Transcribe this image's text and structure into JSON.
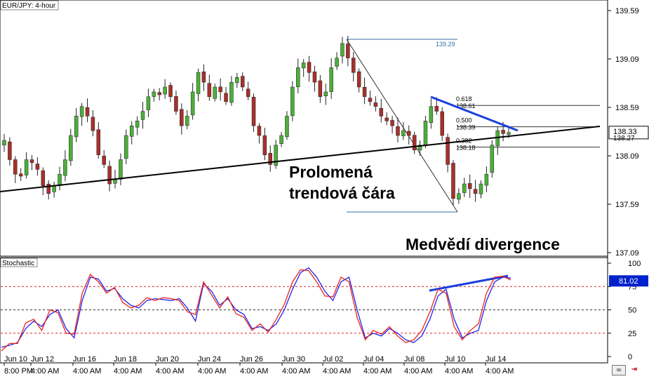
{
  "chart_data": [
    {
      "type": "candlestick",
      "title": "EUR/JPY: 4-hour",
      "yticks": [
        "139.59",
        "139.09",
        "138.59",
        "138.09",
        "137.59",
        "137.09"
      ],
      "ylim": [
        136.95,
        139.75
      ],
      "xticks_top": [
        "Jun 10",
        "Jun 12",
        "Jun 16",
        "Jun 18",
        "Jun 20",
        "Jun 24",
        "Jun 26",
        "Jun 30",
        "Jul 02",
        "Jul 04",
        "Jul 08",
        "Jul 10",
        "Jul 14"
      ],
      "xticks_bottom": [
        "8:00 PM",
        "4:00 AM",
        "4:00 AM",
        "4:00 AM",
        "4:00 AM",
        "4:00 AM",
        "4:00 AM",
        "4:00 AM",
        "4:00 AM",
        "4:00 AM",
        "4:00 AM",
        "4:00 AM",
        "4:00 AM"
      ],
      "current_price": "138.33",
      "price_badge_secondary": "138.27",
      "fib_levels": [
        {
          "ratio": "0.618",
          "price": "138.61"
        },
        {
          "ratio": "0.500",
          "price": "138.39"
        },
        {
          "ratio": "0.382",
          "price": "138.18"
        }
      ],
      "swing_high_label": "139.29",
      "close_path": [
        138.25,
        138.05,
        137.9,
        137.88,
        138.05,
        138.02,
        137.95,
        137.78,
        137.7,
        137.78,
        137.9,
        138.05,
        138.3,
        138.5,
        138.6,
        138.5,
        138.35,
        138.1,
        138.0,
        137.8,
        137.85,
        138.05,
        138.3,
        138.4,
        138.45,
        138.55,
        138.7,
        138.75,
        138.72,
        138.8,
        138.7,
        138.55,
        138.4,
        138.5,
        138.75,
        138.95,
        138.85,
        138.7,
        138.8,
        138.75,
        138.65,
        138.85,
        138.9,
        138.8,
        138.7,
        138.4,
        138.3,
        138.1,
        138.0,
        138.2,
        138.3,
        138.5,
        138.8,
        139.0,
        139.05,
        138.95,
        138.85,
        138.7,
        138.75,
        139.0,
        139.1,
        139.25,
        139.1,
        138.95,
        138.8,
        138.7,
        138.65,
        138.6,
        138.5,
        138.45,
        138.4,
        138.3,
        138.35,
        138.3,
        138.15,
        138.2,
        138.45,
        138.6,
        138.55,
        138.3,
        138.0,
        137.65,
        137.7,
        137.8,
        137.75,
        137.7,
        137.8,
        137.9,
        138.2,
        138.35,
        138.32,
        138.33
      ]
    },
    {
      "type": "line",
      "title": "Stochastic",
      "yticks": [
        "100",
        "75",
        "50",
        "25",
        "0"
      ],
      "ylim": [
        0,
        100
      ],
      "levels": [
        75,
        50,
        25
      ],
      "current_value": "81.02",
      "series": [
        {
          "color": "#2222ee",
          "values": [
            10,
            12,
            15,
            30,
            38,
            32,
            45,
            50,
            30,
            20,
            60,
            85,
            83,
            70,
            73,
            62,
            55,
            52,
            60,
            62,
            61,
            60,
            62,
            52,
            38,
            78,
            70,
            55,
            62,
            50,
            45,
            30,
            32,
            28,
            35,
            50,
            72,
            90,
            95,
            85,
            70,
            60,
            80,
            85,
            50,
            20,
            25,
            22,
            30,
            25,
            18,
            15,
            22,
            40,
            65,
            72,
            40,
            20,
            25,
            28,
            60,
            80,
            85,
            84
          ]
        },
        {
          "color": "#e8251c",
          "values": [
            6,
            14,
            14,
            36,
            40,
            28,
            50,
            47,
            25,
            24,
            68,
            88,
            80,
            68,
            74,
            58,
            52,
            55,
            63,
            60,
            63,
            62,
            60,
            48,
            45,
            80,
            66,
            52,
            64,
            46,
            42,
            28,
            35,
            26,
            40,
            56,
            80,
            93,
            92,
            80,
            65,
            64,
            85,
            80,
            42,
            18,
            28,
            24,
            32,
            22,
            15,
            18,
            28,
            48,
            72,
            68,
            32,
            18,
            28,
            35,
            68,
            85,
            86,
            82
          ]
        }
      ]
    }
  ],
  "annotations": {
    "broken_trendline": "Prolomená\ntrendová čára",
    "bearish_divergence": "Medvědí divergence"
  },
  "colors": {
    "bull": "#4caf3a",
    "bear": "#a8302c",
    "trendline": "#000000",
    "divergence": "#1a3fe0",
    "fib": "#999999",
    "stoch_blue": "#2222ee",
    "stoch_red": "#e8251c",
    "badge_blue": "#0022cc"
  }
}
